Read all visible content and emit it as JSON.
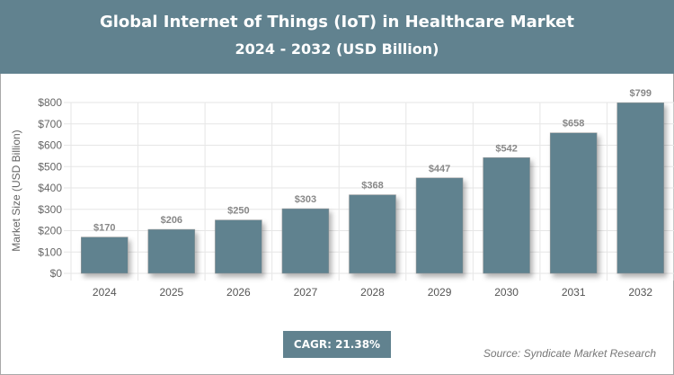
{
  "header": {
    "title": "Global Internet of Things (IoT) in Healthcare Market",
    "subtitle": "2024 - 2032 (USD Billion)"
  },
  "cagr": "CAGR: 21.38%",
  "source": "Source: Syndicate Market Research",
  "chart_data": {
    "type": "bar",
    "title": "Global Internet of Things (IoT) in Healthcare Market",
    "subtitle": "2024 - 2032 (USD Billion)",
    "ylabel": "Market Size (USD Billion)",
    "xlabel": "",
    "categories": [
      "2024",
      "2025",
      "2026",
      "2027",
      "2028",
      "2029",
      "2030",
      "2031",
      "2032"
    ],
    "values": [
      170,
      206,
      250,
      303,
      368,
      447,
      542,
      658,
      799
    ],
    "data_labels": [
      "$170",
      "$206",
      "$250",
      "$303",
      "$368",
      "$447",
      "$542",
      "$658",
      "$799"
    ],
    "ylim": [
      0,
      800
    ],
    "yticks": [
      0,
      100,
      200,
      300,
      400,
      500,
      600,
      700,
      800
    ],
    "ytick_labels": [
      "$0",
      "$100",
      "$200",
      "$300",
      "$400",
      "$500",
      "$600",
      "$700",
      "$800"
    ],
    "grid": true,
    "bar_color": "#61828f"
  }
}
